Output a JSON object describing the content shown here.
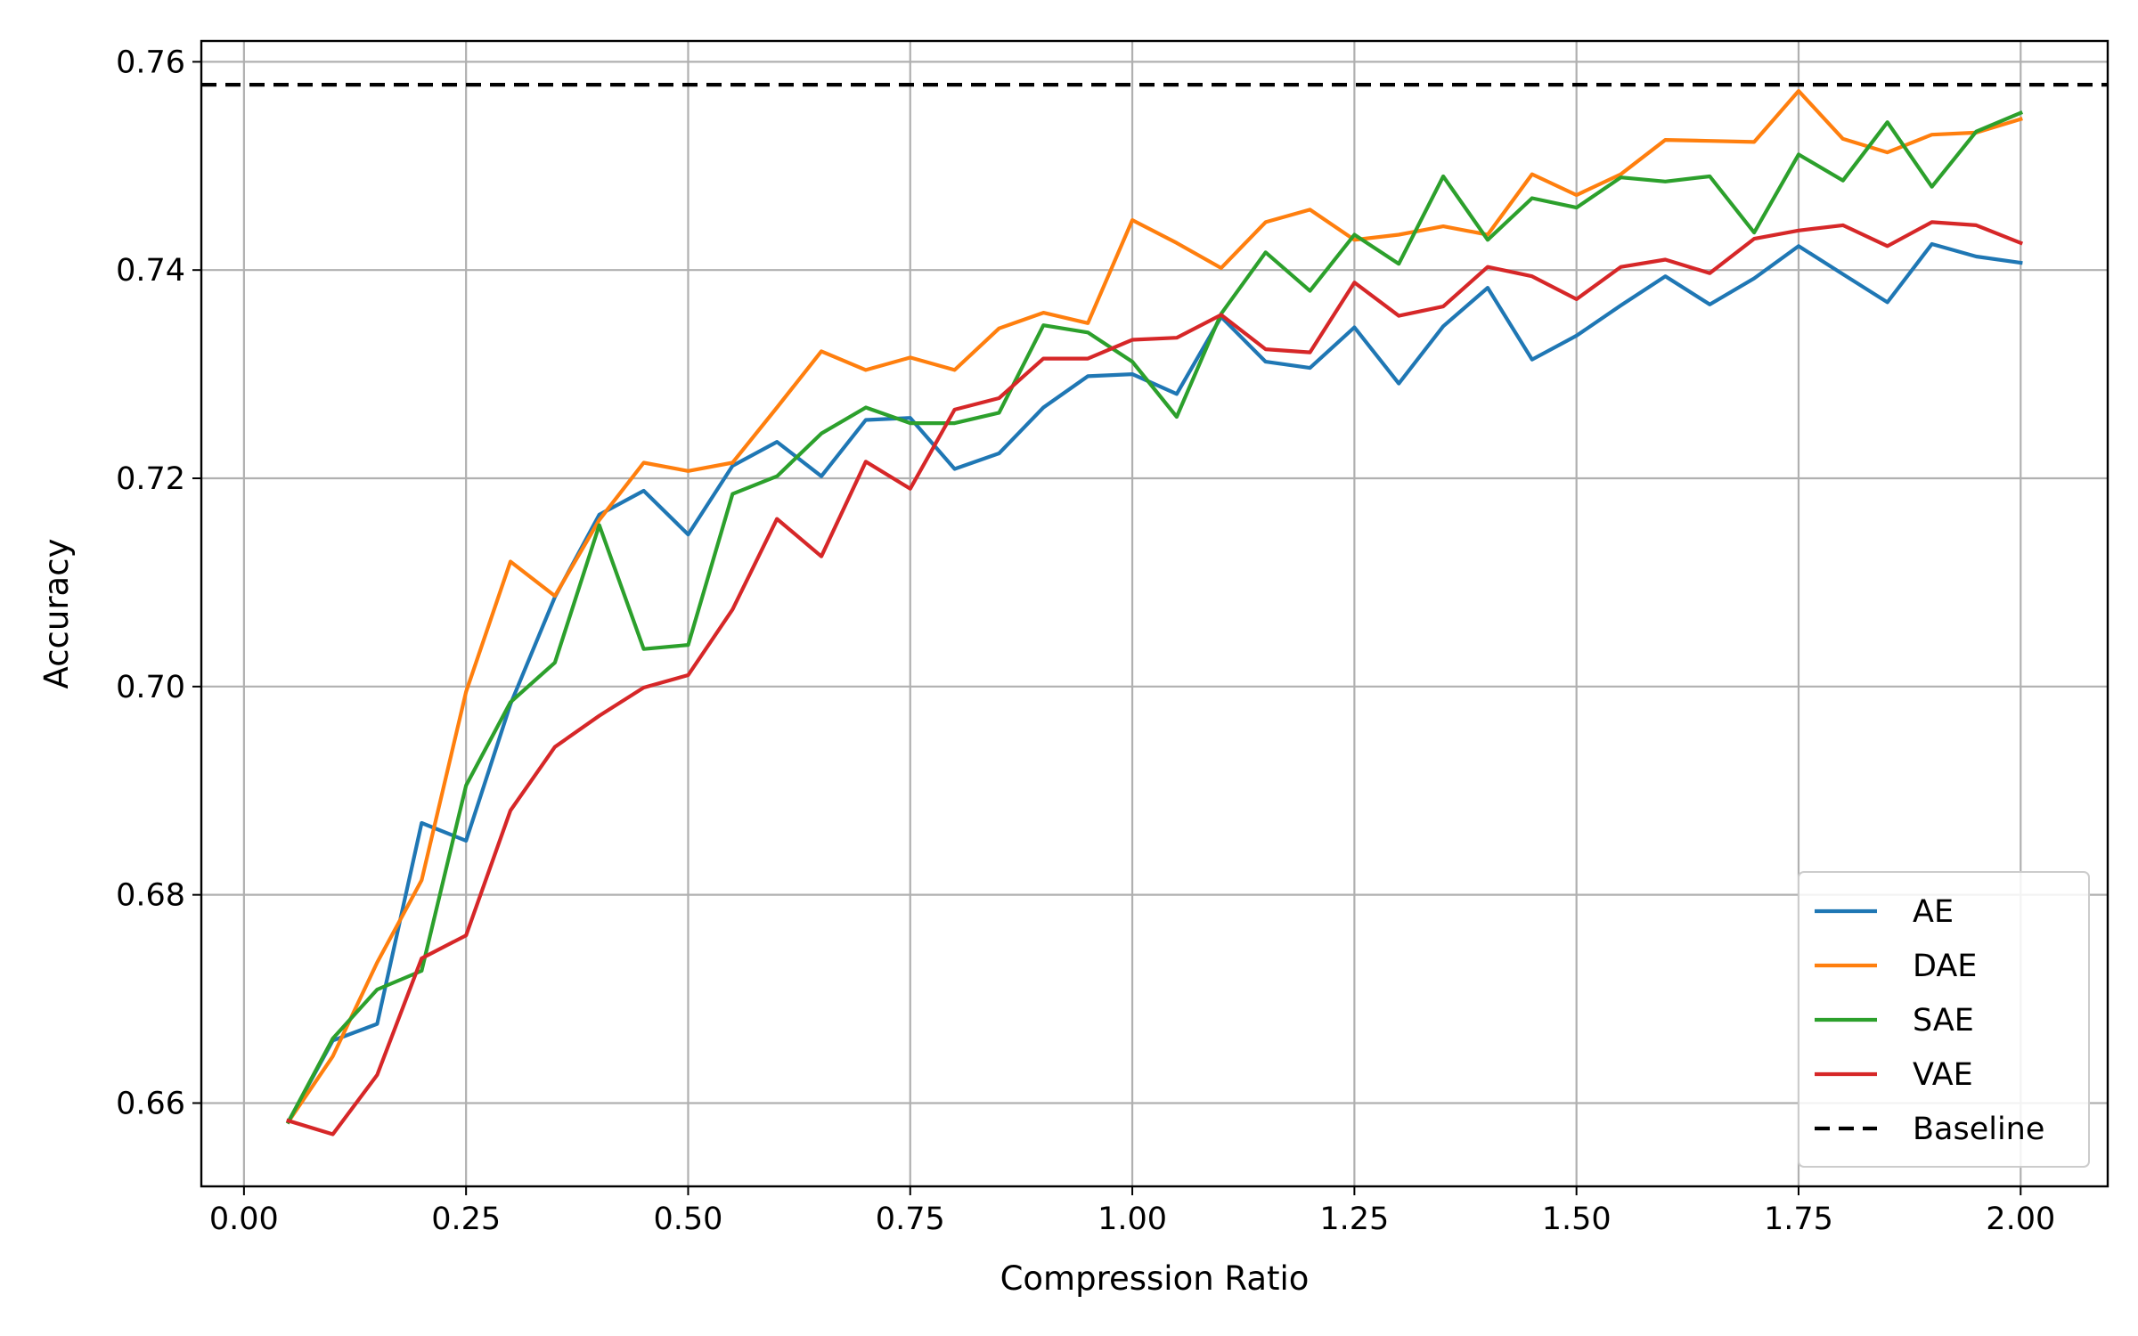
{
  "chart_data": {
    "type": "line",
    "title": "",
    "xlabel": "Compression Ratio",
    "ylabel": "Accuracy",
    "xlim": [
      -0.048,
      2.098
    ],
    "ylim": [
      0.652,
      0.762
    ],
    "xticks": [
      0.0,
      0.25,
      0.5,
      0.75,
      1.0,
      1.25,
      1.5,
      1.75,
      2.0
    ],
    "xtick_labels": [
      "0.00",
      "0.25",
      "0.50",
      "0.75",
      "1.00",
      "1.25",
      "1.50",
      "1.75",
      "2.00"
    ],
    "yticks": [
      0.66,
      0.68,
      0.7,
      0.72,
      0.74,
      0.76
    ],
    "ytick_labels": [
      "0.66",
      "0.68",
      "0.70",
      "0.72",
      "0.74",
      "0.76"
    ],
    "grid": true,
    "legend_position": "lower-right",
    "x": [
      0.05,
      0.1,
      0.15,
      0.2,
      0.25,
      0.3,
      0.35,
      0.4,
      0.45,
      0.5,
      0.55,
      0.6,
      0.65,
      0.7,
      0.75,
      0.8,
      0.85,
      0.9,
      0.95,
      1.0,
      1.05,
      1.1,
      1.15,
      1.2,
      1.25,
      1.3,
      1.35,
      1.4,
      1.45,
      1.5,
      1.55,
      1.6,
      1.65,
      1.7,
      1.75,
      1.8,
      1.85,
      1.9,
      1.95,
      2.0
    ],
    "series": [
      {
        "name": "AE",
        "color": "#1f77b4",
        "values": [
          0.6582,
          0.666,
          0.6676,
          0.6869,
          0.6852,
          0.6983,
          0.7086,
          0.7165,
          0.7188,
          0.7146,
          0.7212,
          0.7235,
          0.7202,
          0.7256,
          0.7258,
          0.7209,
          0.7224,
          0.7268,
          0.7298,
          0.73,
          0.7281,
          0.7355,
          0.7312,
          0.7306,
          0.7345,
          0.7291,
          0.7346,
          0.7383,
          0.7314,
          0.7337,
          0.7366,
          0.7394,
          0.7367,
          0.7392,
          0.7423,
          0.7396,
          0.7369,
          0.7425,
          0.7413,
          0.7407
        ]
      },
      {
        "name": "DAE",
        "color": "#ff7f0e",
        "values": [
          0.6582,
          0.6645,
          0.6735,
          0.6814,
          0.6995,
          0.712,
          0.7087,
          0.716,
          0.7215,
          0.7207,
          0.7215,
          0.7268,
          0.7322,
          0.7304,
          0.7316,
          0.7304,
          0.7344,
          0.7359,
          0.7349,
          0.7448,
          0.7426,
          0.7402,
          0.7446,
          0.7458,
          0.7429,
          0.7434,
          0.7442,
          0.7434,
          0.7492,
          0.7472,
          0.7492,
          0.7525,
          0.7524,
          0.7523,
          0.7572,
          0.7526,
          0.7513,
          0.753,
          0.7532,
          0.7545
        ]
      },
      {
        "name": "SAE",
        "color": "#2ca02c",
        "values": [
          0.6582,
          0.6662,
          0.6709,
          0.6727,
          0.6905,
          0.6985,
          0.7023,
          0.7155,
          0.7036,
          0.704,
          0.7185,
          0.7202,
          0.7243,
          0.7268,
          0.7253,
          0.7253,
          0.7263,
          0.7347,
          0.734,
          0.7312,
          0.7259,
          0.7358,
          0.7417,
          0.738,
          0.7434,
          0.7406,
          0.749,
          0.7429,
          0.7469,
          0.746,
          0.7489,
          0.7485,
          0.749,
          0.7436,
          0.7511,
          0.7486,
          0.7542,
          0.748,
          0.7533,
          0.7551
        ]
      },
      {
        "name": "VAE",
        "color": "#d62728",
        "values": [
          0.6583,
          0.657,
          0.6627,
          0.6739,
          0.6761,
          0.6881,
          0.6942,
          0.6972,
          0.6999,
          0.7011,
          0.7074,
          0.7161,
          0.7125,
          0.7216,
          0.719,
          0.7266,
          0.7277,
          0.7315,
          0.7315,
          0.7333,
          0.7335,
          0.7357,
          0.7324,
          0.7321,
          0.7388,
          0.7356,
          0.7365,
          0.7403,
          0.7394,
          0.7372,
          0.7403,
          0.741,
          0.7397,
          0.743,
          0.7438,
          0.7443,
          0.7423,
          0.7446,
          0.7443,
          0.7426
        ]
      }
    ],
    "baseline": {
      "name": "Baseline",
      "value": 0.7578,
      "color": "#000000",
      "style": "dashed"
    }
  }
}
